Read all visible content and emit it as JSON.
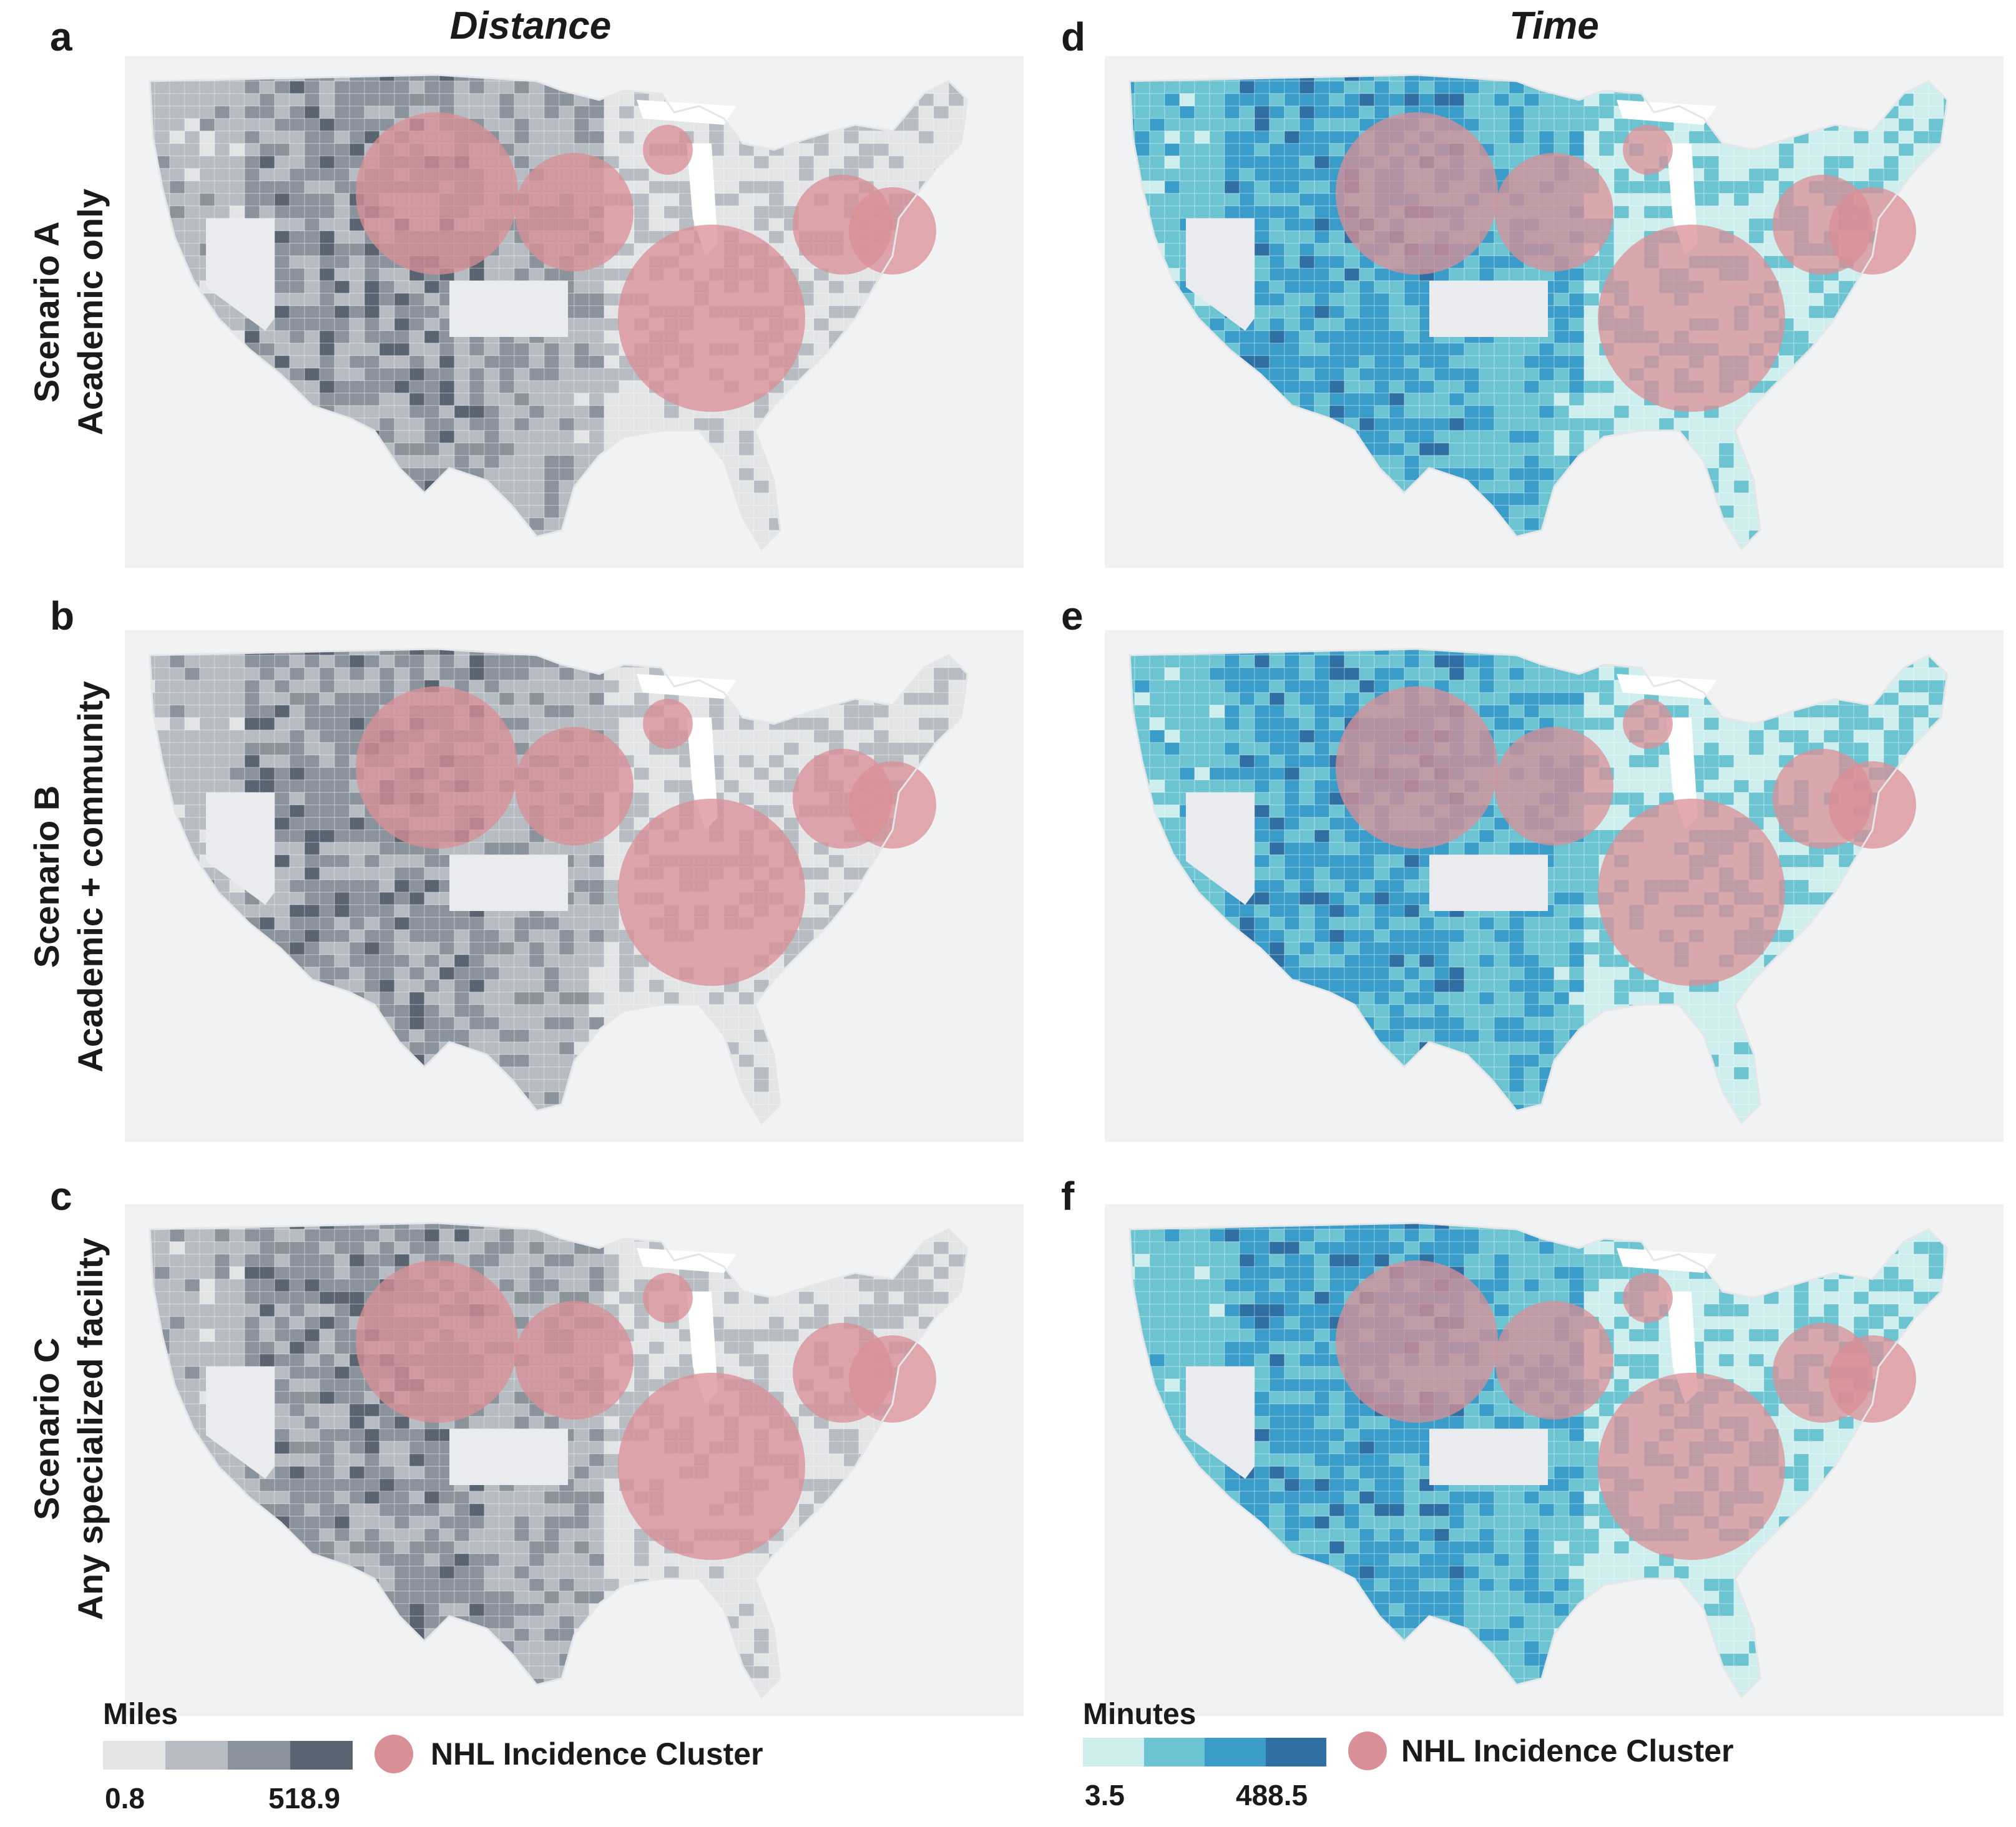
{
  "columns": {
    "distance_title": "Distance",
    "time_title": "Time"
  },
  "rows": [
    {
      "scenario": "Scenario A",
      "desc": "Academic only"
    },
    {
      "scenario": "Scenario B",
      "desc": "Academic + community"
    },
    {
      "scenario": "Scenario C",
      "desc": "Any specialized facility"
    }
  ],
  "panels": [
    {
      "letter": "a",
      "palette": "gray"
    },
    {
      "letter": "b",
      "palette": "gray"
    },
    {
      "letter": "c",
      "palette": "gray"
    },
    {
      "letter": "d",
      "palette": "blue"
    },
    {
      "letter": "e",
      "palette": "blue"
    },
    {
      "letter": "f",
      "palette": "blue"
    }
  ],
  "legend_distance": {
    "title": "Miles",
    "min": "0.8",
    "max": "518.9",
    "colors": [
      "#e3e4e6",
      "#b6bcc1",
      "#8a939b",
      "#5a6470"
    ]
  },
  "legend_time": {
    "title": "Minutes",
    "min": "3.5",
    "max": "488.5",
    "colors": [
      "#cdeeed",
      "#6cc4d2",
      "#3a9cc8",
      "#2f6fa3"
    ]
  },
  "cluster_legend": {
    "label": "NHL Incidence Cluster",
    "color": "#d98f96"
  },
  "map_colors": {
    "ocean": "#f1f2f3",
    "land_outline": "#e4e6e8",
    "nevada_gap": "#e9ebee",
    "cluster": "#d98f96"
  }
}
